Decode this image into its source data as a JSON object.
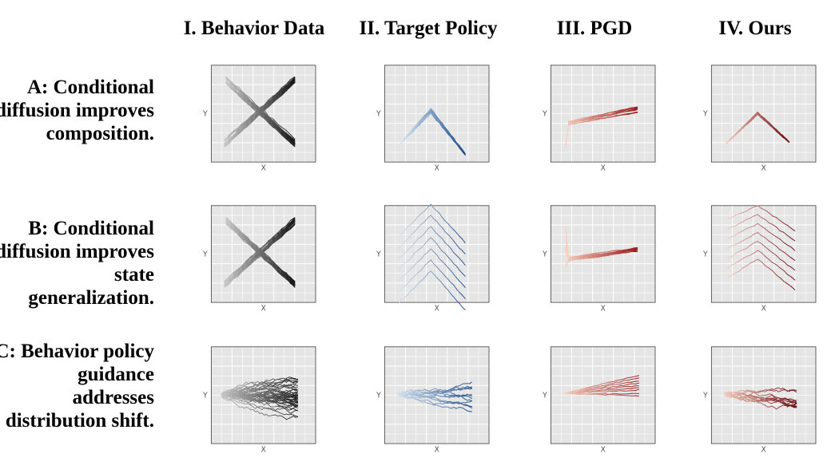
{
  "columns": [
    {
      "title": "I. Behavior Data"
    },
    {
      "title": "II. Target Policy"
    },
    {
      "title": "III. PGD"
    },
    {
      "title": "IV. Ours"
    }
  ],
  "rows": [
    {
      "label": "A: Conditional diffusion improves composition."
    },
    {
      "label": "B: Conditional diffusion improves state generalization."
    },
    {
      "label": "C: Behavior policy guidance addresses distribution shift."
    }
  ],
  "axes": {
    "x_label": "X",
    "y_label": "Y"
  },
  "colors": {
    "panel_bg": "#e5e5e5",
    "grid": "#ffffff",
    "behavior": [
      "#cfcfcf",
      "#1c1c1c"
    ],
    "target": [
      "#dbe9f6",
      "#1f4e8c"
    ],
    "pgd": [
      "#fdd6c3",
      "#9b1b1e"
    ],
    "ours": [
      "#fcd2bf",
      "#6e0d12"
    ]
  }
}
